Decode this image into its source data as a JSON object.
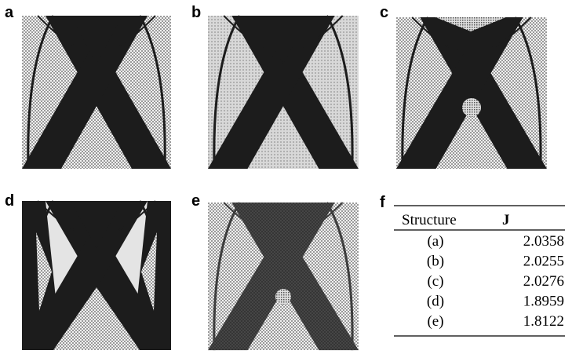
{
  "panels": [
    {
      "label": "a"
    },
    {
      "label": "b"
    },
    {
      "label": "c"
    },
    {
      "label": "d"
    },
    {
      "label": "e"
    }
  ],
  "table": {
    "label": "f",
    "header": [
      "Structure",
      "J"
    ],
    "rows": [
      [
        "(a)",
        "2.0358"
      ],
      [
        "(b)",
        "2.0255"
      ],
      [
        "(c)",
        "2.0276"
      ],
      [
        "(d)",
        "1.8959"
      ],
      [
        "(e)",
        "1.8122"
      ]
    ]
  }
}
